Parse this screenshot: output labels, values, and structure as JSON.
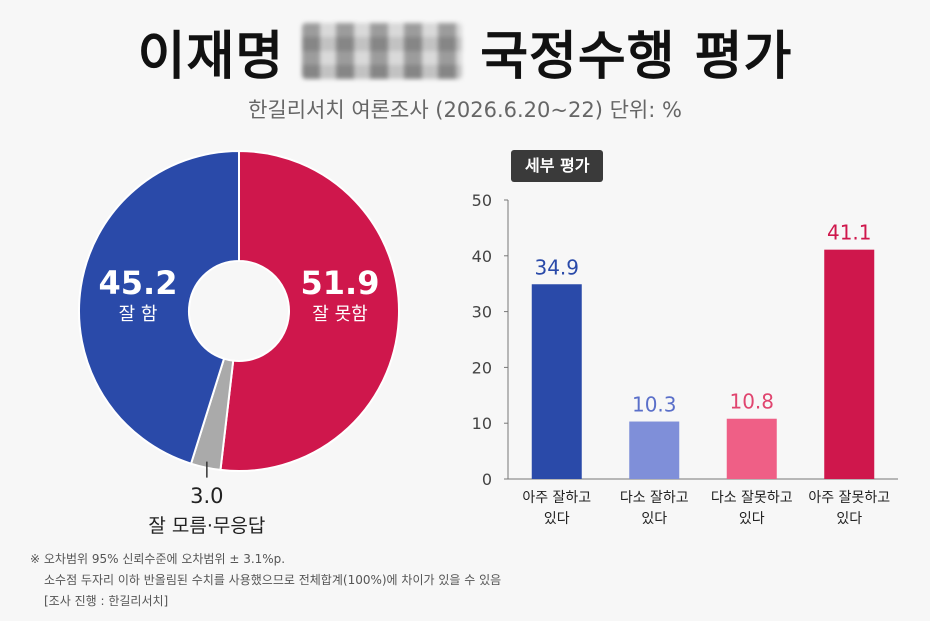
{
  "header": {
    "title_left": "이재명",
    "title_right": "국정수행 평가",
    "subtitle": "한길리서치 여론조사 (2026.6.20~22)  단위: %"
  },
  "section_tag": "세부 평가",
  "colors": {
    "blue": "#2a4aa9",
    "red": "#cf174c",
    "gray": "#aaaaaa",
    "light_blue": "#7f8fd9",
    "pink": "#ef5f86"
  },
  "chart_data": [
    {
      "type": "pie",
      "donut": true,
      "slices": [
        {
          "label": "잘 못함",
          "value": 51.9,
          "value_label": "51.9",
          "color": "#cf174c"
        },
        {
          "label": "잘 모름·무응답",
          "value": 3.0,
          "value_label": "3.0",
          "color": "#aaaaaa"
        },
        {
          "label": "잘 함",
          "value": 45.2,
          "value_label": "45.2",
          "color": "#2a4aa9"
        }
      ]
    },
    {
      "type": "bar",
      "title": "세부 평가",
      "categories": [
        [
          "아주 잘하고",
          "있다"
        ],
        [
          "다소 잘하고",
          "있다"
        ],
        [
          "다소 잘못하고",
          "있다"
        ],
        [
          "아주 잘못하고",
          "있다"
        ]
      ],
      "values": [
        34.9,
        10.3,
        10.8,
        41.1
      ],
      "value_labels": [
        "34.9",
        "10.3",
        "10.8",
        "41.1"
      ],
      "colors": [
        "#2a4aa9",
        "#7f8fd9",
        "#ef5f86",
        "#cf174c"
      ],
      "label_colors": [
        "#2a4aa9",
        "#5a6fc9",
        "#e0456f",
        "#cf174c"
      ],
      "ylim": [
        0,
        50
      ],
      "yticks": [
        0,
        10,
        20,
        30,
        40,
        50
      ],
      "grid": false
    }
  ],
  "footnotes": [
    "※ 오차범위 95% 신뢰수준에 오차범위 ± 3.1%p.",
    "소수점 두자리 이하 반올림된 수치를 사용했으므로 전체합계(100%)에 차이가 있을 수 있음",
    "[조사 진행 : 한길리서치]"
  ]
}
